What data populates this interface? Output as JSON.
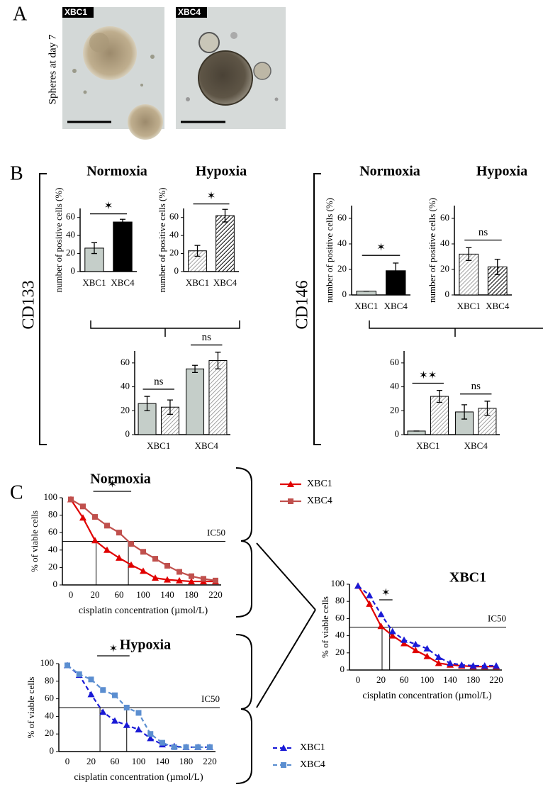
{
  "panel_labels": [
    "A",
    "B",
    "C"
  ],
  "panel_a": {
    "y_label": "Spheres at day 7",
    "images": [
      "XBC1",
      "XBC4"
    ]
  },
  "markers": [
    "CD133",
    "CD146"
  ],
  "chart_data": [
    {
      "type": "bar",
      "title": "Normoxia",
      "y_label": "number of positive cells (%)",
      "categories": [
        "XBC1",
        "XBC4"
      ],
      "values": [
        26,
        55
      ],
      "errors": [
        6,
        3
      ],
      "colors": [
        "#c5cec9",
        "#000000"
      ],
      "hatch": false,
      "ylim": [
        0,
        70
      ],
      "yticks": [
        0,
        20,
        40,
        60
      ],
      "annotations": [
        "✶"
      ]
    },
    {
      "type": "bar",
      "title": "Hypoxia",
      "y_label": "number of positive cells (%)",
      "categories": [
        "XBC1",
        "XBC4"
      ],
      "values": [
        23,
        62
      ],
      "errors": [
        6,
        7
      ],
      "colors": [
        "#a0a0a0",
        "#000000"
      ],
      "hatch": true,
      "ylim": [
        0,
        70
      ],
      "yticks": [
        0,
        20,
        40,
        60
      ],
      "annotations": [
        "✶"
      ]
    },
    {
      "type": "grouped_bar",
      "categories": [
        "XBC1",
        "XBC4"
      ],
      "series": [
        {
          "color": "#c5cec9",
          "hatch": false,
          "values": [
            26,
            55
          ],
          "errors": [
            6,
            3
          ]
        },
        {
          "color": "#a0a0a0",
          "hatch": true,
          "values": [
            23,
            62
          ],
          "errors": [
            6,
            7
          ]
        }
      ],
      "ylim": [
        0,
        70
      ],
      "yticks": [
        0,
        20,
        40,
        60
      ],
      "annotations": [
        "ns",
        "ns"
      ]
    },
    {
      "type": "bar",
      "title": "Normoxia",
      "y_label": "number of positive cells (%)",
      "categories": [
        "XBC1",
        "XBC4"
      ],
      "values": [
        3,
        19
      ],
      "errors": [
        0,
        6
      ],
      "colors": [
        "#c5cec9",
        "#000000"
      ],
      "hatch": false,
      "ylim": [
        0,
        70
      ],
      "yticks": [
        0,
        20,
        40,
        60
      ],
      "annotations": [
        "✶"
      ]
    },
    {
      "type": "bar",
      "title": "Hypoxia",
      "y_label": "number of positive cells (%)",
      "categories": [
        "XBC1",
        "XBC4"
      ],
      "values": [
        32,
        22
      ],
      "errors": [
        5,
        6
      ],
      "colors": [
        "#a0a0a0",
        "#000000"
      ],
      "hatch": true,
      "ylim": [
        0,
        70
      ],
      "yticks": [
        0,
        20,
        40,
        60
      ],
      "annotations": [
        "ns"
      ]
    },
    {
      "type": "grouped_bar",
      "categories": [
        "XBC1",
        "XBC4"
      ],
      "series": [
        {
          "color": "#c5cec9",
          "hatch": false,
          "values": [
            3,
            19
          ],
          "errors": [
            0,
            6
          ]
        },
        {
          "color": "#a0a0a0",
          "hatch": true,
          "values": [
            32,
            22
          ],
          "errors": [
            5,
            6
          ]
        }
      ],
      "ylim": [
        0,
        70
      ],
      "yticks": [
        0,
        20,
        40,
        60
      ],
      "annotations": [
        "✶✶",
        "ns"
      ]
    },
    {
      "type": "line",
      "title": "Normoxia",
      "x_label": "cisplatin concentration (µmol/L)",
      "y_label": "% of viable cells",
      "categories": [
        0,
        null,
        20,
        null,
        60,
        null,
        100,
        null,
        140,
        null,
        180,
        null,
        220
      ],
      "series": [
        {
          "name": "XBC1",
          "color": "#e00000",
          "marker": "triangle",
          "dashed": false,
          "values": [
            98,
            77,
            51,
            40,
            31,
            23,
            16,
            8,
            6,
            5,
            4,
            4,
            4
          ]
        },
        {
          "name": "XBC4",
          "color": "#c0504d",
          "marker": "square",
          "dashed": false,
          "values": [
            98,
            90,
            78,
            68,
            60,
            47,
            38,
            30,
            22,
            15,
            10,
            7,
            5
          ]
        }
      ],
      "ylim": [
        0,
        100
      ],
      "yticks": [
        0,
        20,
        40,
        60,
        80,
        100
      ],
      "reference_line": {
        "value": 50,
        "label": "IC50"
      },
      "annotations": [
        "✶"
      ]
    },
    {
      "type": "line",
      "title": "Hypoxia",
      "x_label": "cisplatin concentration (µmol/L)",
      "y_label": "% of viable cells",
      "categories": [
        0,
        null,
        20,
        null,
        60,
        null,
        100,
        null,
        140,
        null,
        180,
        null,
        220
      ],
      "series": [
        {
          "name": "XBC1",
          "color": "#1a1ad6",
          "marker": "triangle",
          "dashed": true,
          "values": [
            98,
            87,
            65,
            45,
            35,
            30,
            25,
            15,
            8,
            6,
            5,
            5,
            5
          ]
        },
        {
          "name": "XBC4",
          "color": "#5b8ed0",
          "marker": "square",
          "dashed": true,
          "values": [
            98,
            88,
            82,
            70,
            64,
            50,
            44,
            20,
            10,
            5,
            5,
            5,
            5
          ]
        }
      ],
      "ylim": [
        0,
        100
      ],
      "yticks": [
        0,
        20,
        40,
        60,
        80,
        100
      ],
      "reference_line": {
        "value": 50,
        "label": "IC50"
      },
      "annotations": [
        "✶"
      ]
    },
    {
      "type": "line",
      "title": "XBC1",
      "x_label": "cisplatin concentration (µmol/L)",
      "y_label": "% of viable cells",
      "categories": [
        0,
        null,
        20,
        null,
        60,
        null,
        100,
        null,
        140,
        null,
        180,
        null,
        220
      ],
      "series": [
        {
          "color": "#e00000",
          "marker": "triangle",
          "dashed": false,
          "values": [
            98,
            77,
            51,
            40,
            31,
            23,
            16,
            8,
            6,
            5,
            4,
            4,
            4
          ]
        },
        {
          "color": "#1a1ad6",
          "marker": "triangle",
          "dashed": true,
          "values": [
            98,
            87,
            65,
            45,
            35,
            30,
            25,
            15,
            8,
            6,
            5,
            5,
            5
          ]
        }
      ],
      "ylim": [
        0,
        100
      ],
      "yticks": [
        0,
        20,
        40,
        60,
        80,
        100
      ],
      "reference_line": {
        "value": 50,
        "label": "IC50"
      },
      "annotations": [
        "✶"
      ]
    }
  ]
}
